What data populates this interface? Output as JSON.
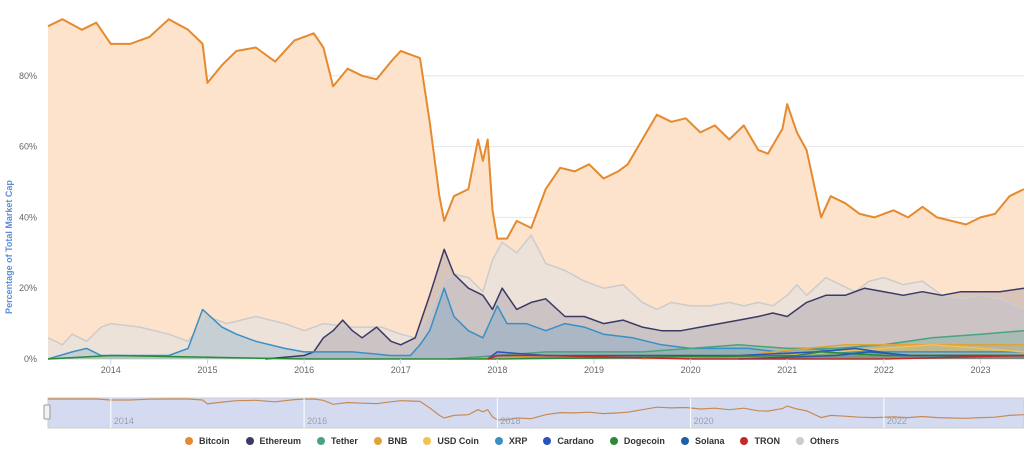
{
  "chart_data": {
    "type": "area",
    "ylabel": "Percentage of Total Market Cap",
    "y_ticks": [
      "0%",
      "20%",
      "40%",
      "60%",
      "80%"
    ],
    "ylim": [
      0,
      100
    ],
    "x_ticks": [
      "2014",
      "2015",
      "2016",
      "2017",
      "2018",
      "2019",
      "2020",
      "2021",
      "2022",
      "2023"
    ],
    "xlim": [
      2013.35,
      2023.45
    ],
    "navigator_ticks": [
      "2014",
      "2016",
      "2018",
      "2020",
      "2022"
    ],
    "grid": true,
    "legend_position": "bottom",
    "series": [
      {
        "name": "Bitcoin",
        "color": "#e58a2e",
        "fill": "#fde3cc",
        "points": [
          [
            2013.35,
            94
          ],
          [
            2013.5,
            96
          ],
          [
            2013.7,
            93
          ],
          [
            2013.85,
            95
          ],
          [
            2014.0,
            89
          ],
          [
            2014.2,
            89
          ],
          [
            2014.4,
            91
          ],
          [
            2014.6,
            96
          ],
          [
            2014.8,
            93
          ],
          [
            2014.95,
            89
          ],
          [
            2015.0,
            78
          ],
          [
            2015.15,
            83
          ],
          [
            2015.3,
            87
          ],
          [
            2015.5,
            88
          ],
          [
            2015.7,
            84
          ],
          [
            2015.9,
            90
          ],
          [
            2016.0,
            91
          ],
          [
            2016.1,
            92
          ],
          [
            2016.2,
            88
          ],
          [
            2016.3,
            77
          ],
          [
            2016.45,
            82
          ],
          [
            2016.6,
            80
          ],
          [
            2016.75,
            79
          ],
          [
            2016.9,
            84
          ],
          [
            2017.0,
            87
          ],
          [
            2017.1,
            86
          ],
          [
            2017.2,
            85
          ],
          [
            2017.3,
            67
          ],
          [
            2017.4,
            46
          ],
          [
            2017.45,
            39
          ],
          [
            2017.55,
            46
          ],
          [
            2017.7,
            48
          ],
          [
            2017.8,
            62
          ],
          [
            2017.85,
            56
          ],
          [
            2017.9,
            62
          ],
          [
            2017.95,
            42
          ],
          [
            2018.0,
            34
          ],
          [
            2018.1,
            34
          ],
          [
            2018.2,
            39
          ],
          [
            2018.35,
            37
          ],
          [
            2018.5,
            48
          ],
          [
            2018.65,
            54
          ],
          [
            2018.8,
            53
          ],
          [
            2018.95,
            55
          ],
          [
            2019.1,
            51
          ],
          [
            2019.25,
            53
          ],
          [
            2019.35,
            55
          ],
          [
            2019.5,
            62
          ],
          [
            2019.65,
            69
          ],
          [
            2019.8,
            67
          ],
          [
            2019.95,
            68
          ],
          [
            2020.1,
            64
          ],
          [
            2020.25,
            66
          ],
          [
            2020.4,
            62
          ],
          [
            2020.55,
            66
          ],
          [
            2020.7,
            59
          ],
          [
            2020.8,
            58
          ],
          [
            2020.95,
            65
          ],
          [
            2021.0,
            72
          ],
          [
            2021.1,
            64
          ],
          [
            2021.2,
            59
          ],
          [
            2021.35,
            40
          ],
          [
            2021.45,
            46
          ],
          [
            2021.6,
            44
          ],
          [
            2021.75,
            41
          ],
          [
            2021.9,
            40
          ],
          [
            2022.1,
            42
          ],
          [
            2022.25,
            40
          ],
          [
            2022.4,
            43
          ],
          [
            2022.55,
            40
          ],
          [
            2022.7,
            39
          ],
          [
            2022.85,
            38
          ],
          [
            2023.0,
            40
          ],
          [
            2023.15,
            41
          ],
          [
            2023.3,
            46
          ],
          [
            2023.45,
            48
          ]
        ]
      },
      {
        "name": "Others",
        "color": "#cccccc",
        "fill": "rgba(225,225,225,0.6)",
        "points": [
          [
            2013.35,
            6
          ],
          [
            2013.5,
            4
          ],
          [
            2013.6,
            7
          ],
          [
            2013.75,
            5
          ],
          [
            2013.9,
            9
          ],
          [
            2014.0,
            10
          ],
          [
            2014.3,
            9
          ],
          [
            2014.6,
            7
          ],
          [
            2014.8,
            5
          ],
          [
            2015.0,
            12
          ],
          [
            2015.2,
            10
          ],
          [
            2015.5,
            12
          ],
          [
            2015.8,
            10
          ],
          [
            2016.0,
            8
          ],
          [
            2016.2,
            10
          ],
          [
            2016.5,
            9
          ],
          [
            2016.8,
            9
          ],
          [
            2017.0,
            7
          ],
          [
            2017.15,
            6
          ],
          [
            2017.3,
            13
          ],
          [
            2017.45,
            22
          ],
          [
            2017.55,
            24
          ],
          [
            2017.7,
            23
          ],
          [
            2017.85,
            19
          ],
          [
            2017.95,
            28
          ],
          [
            2018.05,
            33
          ],
          [
            2018.2,
            30
          ],
          [
            2018.35,
            35
          ],
          [
            2018.5,
            27
          ],
          [
            2018.7,
            25
          ],
          [
            2018.9,
            22
          ],
          [
            2019.1,
            20
          ],
          [
            2019.3,
            21
          ],
          [
            2019.5,
            16
          ],
          [
            2019.65,
            14
          ],
          [
            2019.8,
            16
          ],
          [
            2020.0,
            15
          ],
          [
            2020.2,
            15
          ],
          [
            2020.4,
            16
          ],
          [
            2020.55,
            15
          ],
          [
            2020.7,
            16
          ],
          [
            2020.85,
            15
          ],
          [
            2021.0,
            18
          ],
          [
            2021.1,
            21
          ],
          [
            2021.2,
            18
          ],
          [
            2021.4,
            23
          ],
          [
            2021.55,
            21
          ],
          [
            2021.7,
            19
          ],
          [
            2021.85,
            22
          ],
          [
            2022.0,
            23
          ],
          [
            2022.2,
            21
          ],
          [
            2022.4,
            22
          ],
          [
            2022.6,
            18
          ],
          [
            2022.8,
            17
          ],
          [
            2023.0,
            18
          ],
          [
            2023.2,
            17
          ],
          [
            2023.45,
            14
          ]
        ]
      },
      {
        "name": "Ethereum",
        "color": "#3a3a66",
        "fill": "rgba(58,58,102,0.18)",
        "points": [
          [
            2015.6,
            0
          ],
          [
            2016.0,
            1
          ],
          [
            2016.1,
            2
          ],
          [
            2016.2,
            6
          ],
          [
            2016.3,
            8
          ],
          [
            2016.4,
            11
          ],
          [
            2016.5,
            8
          ],
          [
            2016.6,
            6
          ],
          [
            2016.75,
            9
          ],
          [
            2016.9,
            5
          ],
          [
            2017.0,
            4
          ],
          [
            2017.15,
            6
          ],
          [
            2017.3,
            18
          ],
          [
            2017.45,
            31
          ],
          [
            2017.55,
            24
          ],
          [
            2017.7,
            20
          ],
          [
            2017.85,
            18
          ],
          [
            2017.95,
            14
          ],
          [
            2018.05,
            20
          ],
          [
            2018.2,
            14
          ],
          [
            2018.35,
            16
          ],
          [
            2018.5,
            17
          ],
          [
            2018.7,
            12
          ],
          [
            2018.9,
            12
          ],
          [
            2019.1,
            10
          ],
          [
            2019.3,
            11
          ],
          [
            2019.5,
            9
          ],
          [
            2019.7,
            8
          ],
          [
            2019.9,
            8
          ],
          [
            2020.1,
            9
          ],
          [
            2020.3,
            10
          ],
          [
            2020.5,
            11
          ],
          [
            2020.7,
            12
          ],
          [
            2020.85,
            13
          ],
          [
            2021.0,
            12
          ],
          [
            2021.2,
            16
          ],
          [
            2021.4,
            18
          ],
          [
            2021.6,
            18
          ],
          [
            2021.8,
            20
          ],
          [
            2022.0,
            19
          ],
          [
            2022.2,
            18
          ],
          [
            2022.4,
            19
          ],
          [
            2022.6,
            18
          ],
          [
            2022.8,
            19
          ],
          [
            2023.0,
            19
          ],
          [
            2023.2,
            19
          ],
          [
            2023.45,
            20
          ]
        ]
      },
      {
        "name": "XRP",
        "color": "#3b8fc2",
        "fill": "rgba(59,143,194,0.22)",
        "points": [
          [
            2013.35,
            0
          ],
          [
            2013.6,
            2
          ],
          [
            2013.75,
            3
          ],
          [
            2013.9,
            1
          ],
          [
            2014.3,
            1
          ],
          [
            2014.6,
            1
          ],
          [
            2014.8,
            3
          ],
          [
            2014.95,
            14
          ],
          [
            2015.15,
            9
          ],
          [
            2015.3,
            7
          ],
          [
            2015.5,
            5
          ],
          [
            2015.8,
            3
          ],
          [
            2016.0,
            2
          ],
          [
            2016.5,
            2
          ],
          [
            2016.9,
            1
          ],
          [
            2017.1,
            1
          ],
          [
            2017.2,
            4
          ],
          [
            2017.3,
            8
          ],
          [
            2017.45,
            20
          ],
          [
            2017.55,
            12
          ],
          [
            2017.7,
            8
          ],
          [
            2017.85,
            6
          ],
          [
            2017.95,
            12
          ],
          [
            2018.0,
            15
          ],
          [
            2018.1,
            10
          ],
          [
            2018.3,
            10
          ],
          [
            2018.5,
            8
          ],
          [
            2018.7,
            10
          ],
          [
            2018.9,
            9
          ],
          [
            2019.1,
            7
          ],
          [
            2019.4,
            6
          ],
          [
            2019.7,
            4
          ],
          [
            2020.0,
            3
          ],
          [
            2020.3,
            3
          ],
          [
            2020.6,
            3
          ],
          [
            2020.9,
            2
          ],
          [
            2021.2,
            3
          ],
          [
            2021.6,
            2
          ],
          [
            2022.0,
            2
          ],
          [
            2022.5,
            2
          ],
          [
            2023.0,
            2
          ],
          [
            2023.45,
            2
          ]
        ]
      },
      {
        "name": "Tether",
        "color": "#4aa37f",
        "fill": "rgba(74,163,127,0.25)",
        "points": [
          [
            2017.5,
            0
          ],
          [
            2018.0,
            1
          ],
          [
            2018.5,
            2
          ],
          [
            2019.0,
            2
          ],
          [
            2019.5,
            2
          ],
          [
            2020.0,
            3
          ],
          [
            2020.5,
            4
          ],
          [
            2021.0,
            3
          ],
          [
            2021.5,
            3
          ],
          [
            2022.0,
            4
          ],
          [
            2022.5,
            6
          ],
          [
            2023.0,
            7
          ],
          [
            2023.45,
            8
          ]
        ]
      },
      {
        "name": "BNB",
        "color": "#e0a33a",
        "fill": "rgba(224,163,58,0.2)",
        "points": [
          [
            2017.8,
            0
          ],
          [
            2018.5,
            1
          ],
          [
            2019.5,
            1
          ],
          [
            2020.5,
            1
          ],
          [
            2021.2,
            3
          ],
          [
            2021.6,
            4
          ],
          [
            2022.0,
            4
          ],
          [
            2022.5,
            4
          ],
          [
            2023.0,
            4
          ],
          [
            2023.45,
            4
          ]
        ]
      },
      {
        "name": "USD Coin",
        "color": "#f2c14e",
        "fill": "rgba(242,193,78,0.2)",
        "points": [
          [
            2019.5,
            0
          ],
          [
            2020.5,
            1
          ],
          [
            2021.0,
            1
          ],
          [
            2021.5,
            2
          ],
          [
            2022.0,
            3
          ],
          [
            2022.5,
            4
          ],
          [
            2023.0,
            3
          ],
          [
            2023.45,
            2
          ]
        ]
      },
      {
        "name": "Cardano",
        "color": "#2a52be",
        "fill": "rgba(42,82,190,0.15)",
        "points": [
          [
            2017.9,
            0
          ],
          [
            2018.0,
            2
          ],
          [
            2018.5,
            1
          ],
          [
            2019.5,
            1
          ],
          [
            2020.5,
            1
          ],
          [
            2021.3,
            2
          ],
          [
            2021.7,
            3
          ],
          [
            2022.2,
            1
          ],
          [
            2023.45,
            1
          ]
        ]
      },
      {
        "name": "Dogecoin",
        "color": "#2a8a3a",
        "fill": "rgba(42,138,58,0.15)",
        "points": [
          [
            2013.35,
            0
          ],
          [
            2014.0,
            1
          ],
          [
            2016.0,
            0
          ],
          [
            2018.0,
            0
          ],
          [
            2021.1,
            1
          ],
          [
            2021.35,
            2
          ],
          [
            2022.0,
            1
          ],
          [
            2023.45,
            1
          ]
        ]
      },
      {
        "name": "Solana",
        "color": "#1f5fa8",
        "fill": "rgba(31,95,168,0.15)",
        "points": [
          [
            2020.5,
            0
          ],
          [
            2021.5,
            1
          ],
          [
            2021.85,
            2
          ],
          [
            2022.3,
            1
          ],
          [
            2023.45,
            1
          ]
        ]
      },
      {
        "name": "TRON",
        "color": "#c42a2a",
        "fill": "rgba(196,42,42,0.15)",
        "points": [
          [
            2017.9,
            0
          ],
          [
            2018.0,
            1
          ],
          [
            2018.5,
            1
          ],
          [
            2020.0,
            0
          ],
          [
            2022.0,
            0
          ],
          [
            2023.45,
            1
          ]
        ]
      }
    ]
  }
}
